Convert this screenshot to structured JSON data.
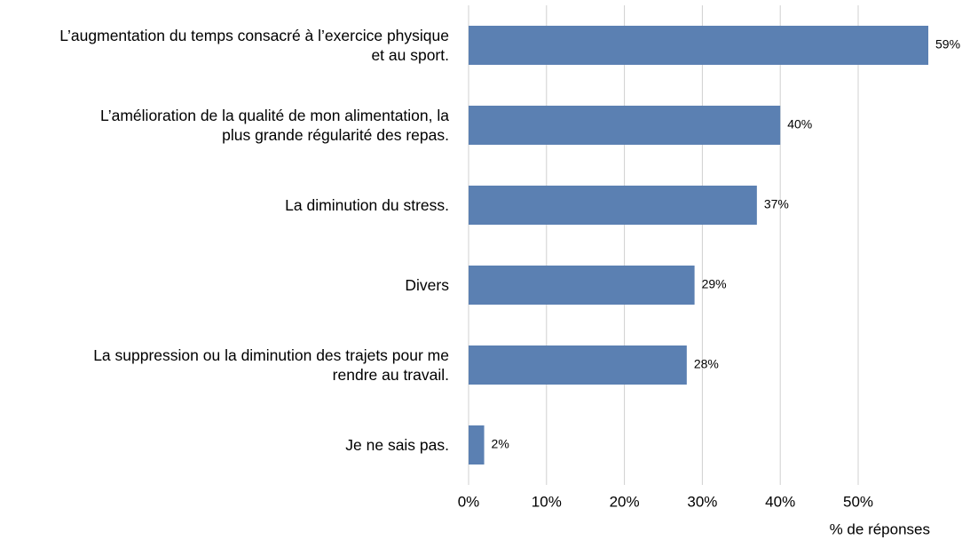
{
  "chart_data": {
    "type": "barh",
    "categories": [
      "L’augmentation du temps consacré à l’exercice physique\net au sport.",
      "L’amélioration de la qualité de mon alimentation, la\nplus grande régularité des repas.",
      "La diminution du stress.",
      "Divers",
      "La suppression ou la diminution des trajets pour me\nrendre au travail.",
      "Je ne sais pas."
    ],
    "values": [
      59,
      40,
      37,
      29,
      28,
      2
    ],
    "value_labels": [
      "59%",
      "40%",
      "37%",
      "29%",
      "28%",
      "2%"
    ],
    "color": "#5b80b2",
    "xlim": [
      0,
      60
    ],
    "xticks": [
      {
        "value": 0,
        "label": "0%"
      },
      {
        "value": 10,
        "label": "10%"
      },
      {
        "value": 20,
        "label": "20%"
      },
      {
        "value": 30,
        "label": "30%"
      },
      {
        "value": 40,
        "label": "40%"
      },
      {
        "value": 50,
        "label": "50%"
      }
    ],
    "xlabel": "% de réponses",
    "grid": true
  }
}
